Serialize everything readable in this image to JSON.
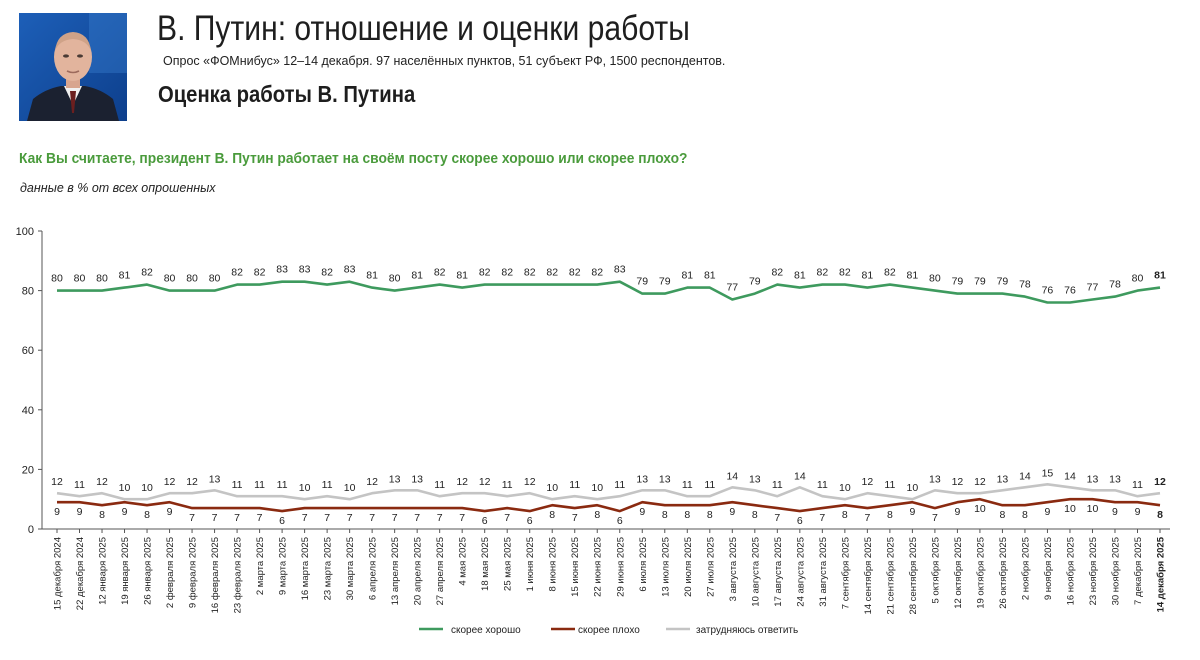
{
  "header": {
    "title": "В. Путин: отношение и оценки работы",
    "subtitle": "Опрос «ФОМнибус» 12–14 декабря. 97 населённых пунктов, 51 субъект РФ, 1500 респондентов.",
    "section": "Оценка работы В. Путина"
  },
  "question": "Как Вы считаете, президент В. Путин работает на своём посту скорее хорошо или скорее плохо?",
  "note": "данные в % от всех опрошенных",
  "colors": {
    "good": "#3e9a5e",
    "bad": "#8a2a10",
    "unsure": "#c4c4c4",
    "question": "#4a9b3c"
  },
  "chart_data": {
    "type": "line",
    "ylim": [
      0,
      100
    ],
    "yticks": [
      0,
      20,
      40,
      60,
      80,
      100
    ],
    "grid": false,
    "legend_position": "bottom-center",
    "x": [
      "15 декабря 2024",
      "22 декабря 2024",
      "12 января 2025",
      "19 января 2025",
      "26 января 2025",
      "2 февраля 2025",
      "9 февраля 2025",
      "16 февраля 2025",
      "23 февраля 2025",
      "2 марта 2025",
      "9 марта 2025",
      "16 марта 2025",
      "23 марта 2025",
      "30 марта 2025",
      "6 апреля 2025",
      "13 апреля 2025",
      "20 апреля 2025",
      "27 апреля 2025",
      "4 мая 2025",
      "18 мая 2025",
      "25 мая 2025",
      "1 июня 2025",
      "8 июня 2025",
      "15 июня 2025",
      "22 июня 2025",
      "29 июня 2025",
      "6 июля 2025",
      "13 июля 2025",
      "20 июля 2025",
      "27 июля 2025",
      "3 августа 2025",
      "10 августа 2025",
      "17 августа 2025",
      "24 августа 2025",
      "31 августа 2025",
      "7 сентября 2025",
      "14 сентября 2025",
      "21 сентября 2025",
      "28 сентября 2025",
      "5 октября 2025",
      "12 октября 2025",
      "19 октября 2025",
      "26 октября 2025",
      "2 ноября 2025",
      "9 ноября 2025",
      "16 ноября 2025",
      "23 ноября 2025",
      "30 ноября 2025",
      "7 декабря 2025",
      "14 декабря 2025"
    ],
    "series": [
      {
        "name": "скорее хорошо",
        "color": "#3e9a5e",
        "values": [
          80,
          80,
          80,
          81,
          82,
          80,
          80,
          80,
          82,
          82,
          83,
          83,
          82,
          83,
          81,
          80,
          81,
          82,
          81,
          82,
          82,
          82,
          82,
          82,
          82,
          83,
          79,
          79,
          81,
          81,
          77,
          79,
          82,
          81,
          82,
          82,
          81,
          82,
          81,
          80,
          79,
          79,
          79,
          78,
          76,
          76,
          77,
          78,
          80,
          81
        ]
      },
      {
        "name": "скорее плохо",
        "color": "#8a2a10",
        "values": [
          9,
          9,
          8,
          9,
          8,
          9,
          7,
          7,
          7,
          7,
          6,
          7,
          7,
          7,
          7,
          7,
          7,
          7,
          7,
          6,
          7,
          6,
          8,
          7,
          8,
          6,
          9,
          8,
          8,
          8,
          9,
          8,
          7,
          6,
          7,
          8,
          7,
          8,
          9,
          7,
          9,
          10,
          8,
          8,
          9,
          10,
          10,
          9,
          9,
          8
        ]
      },
      {
        "name": "затрудняюсь ответить",
        "color": "#c4c4c4",
        "values": [
          12,
          11,
          12,
          10,
          10,
          12,
          12,
          13,
          11,
          11,
          11,
          10,
          11,
          10,
          12,
          13,
          13,
          11,
          12,
          12,
          11,
          12,
          10,
          11,
          10,
          11,
          13,
          13,
          11,
          11,
          14,
          13,
          11,
          14,
          11,
          10,
          12,
          11,
          10,
          13,
          12,
          12,
          13,
          14,
          15,
          14,
          13,
          13,
          11,
          12
        ]
      }
    ]
  }
}
